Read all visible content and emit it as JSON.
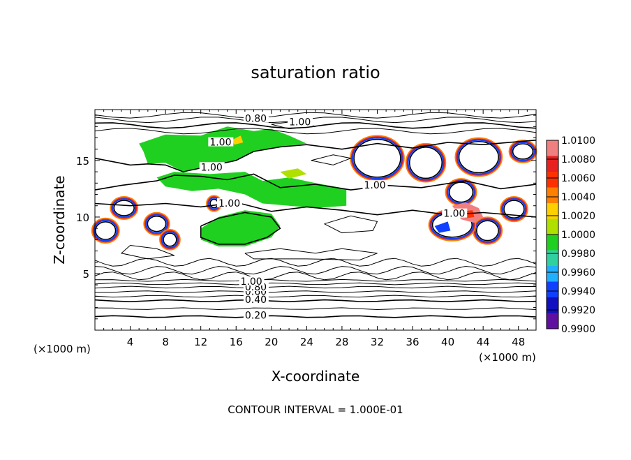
{
  "chart_data": {
    "type": "contour",
    "title": "saturation ratio",
    "xlabel": "X-coordinate",
    "ylabel": "Z-coordinate",
    "x_unit_note": "(×1000 m)",
    "x_unit_note_right": "(×1000 m)",
    "xlim": [
      0,
      50
    ],
    "ylim": [
      0,
      19.5
    ],
    "x_ticks": [
      4,
      8,
      12,
      16,
      20,
      24,
      28,
      32,
      36,
      40,
      44,
      48
    ],
    "y_ticks": [
      5,
      10,
      15
    ],
    "footer": "CONTOUR INTERVAL = 1.000E-01",
    "contour_labels": [
      "0.20",
      "0.40",
      "0.60",
      "0.80",
      "1.00",
      "1.00",
      "1.00",
      "1.00",
      "1.00",
      "1.00",
      "0.80",
      "1.00"
    ],
    "colorbar": {
      "levels": [
        "1.0100",
        "1.0080",
        "1.0060",
        "1.0040",
        "1.0020",
        "1.0000",
        "0.9980",
        "0.9960",
        "0.9940",
        "0.9920",
        "0.9900"
      ],
      "colors": [
        "#f08080",
        "#e82020",
        "#ff3000",
        "#ff8000",
        "#ffd000",
        "#b0e000",
        "#20d020",
        "#30d0a0",
        "#20b0ff",
        "#1040ff",
        "#1010c0",
        "#6010a0"
      ]
    }
  }
}
